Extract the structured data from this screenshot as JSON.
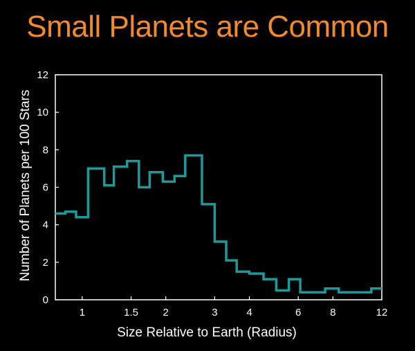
{
  "colors": {
    "background": "#000000",
    "title": "#f08a2c",
    "axes": "#ffffff",
    "series": "#1a9a9a"
  },
  "chart_data": {
    "type": "line",
    "style": "step-histogram",
    "title": "Small Planets are Common",
    "xlabel": "Size Relative to Earth (Radius)",
    "ylabel": "Number of Planets per 100 Stars",
    "x_scale": "log",
    "xlim": [
      0.8,
      12
    ],
    "ylim": [
      0,
      12
    ],
    "grid": false,
    "x_ticks": [
      1,
      1.5,
      2,
      3,
      4,
      6,
      8,
      12
    ],
    "x_tick_labels": [
      "1",
      "1.5",
      "2",
      "3",
      "4",
      "6",
      "8",
      "12"
    ],
    "y_ticks": [
      0,
      2,
      4,
      6,
      8,
      10,
      12
    ],
    "y_tick_labels": [
      "0",
      "2",
      "4",
      "6",
      "8",
      "10",
      "12"
    ],
    "bin_edges": [
      0.8,
      0.87,
      0.95,
      1.05,
      1.2,
      1.3,
      1.45,
      1.6,
      1.75,
      1.95,
      2.15,
      2.35,
      2.7,
      3.0,
      3.3,
      3.6,
      4.0,
      4.5,
      5.0,
      5.55,
      6.1,
      6.7,
      7.5,
      8.4,
      9.5,
      11.0,
      12.0
    ],
    "values": [
      4.6,
      4.7,
      4.4,
      7.0,
      6.1,
      7.1,
      7.4,
      6.0,
      6.8,
      6.3,
      6.6,
      7.7,
      5.1,
      3.1,
      2.1,
      1.5,
      1.4,
      1.1,
      0.5,
      1.1,
      0.4,
      0.4,
      0.6,
      0.4,
      0.4,
      0.6
    ]
  }
}
